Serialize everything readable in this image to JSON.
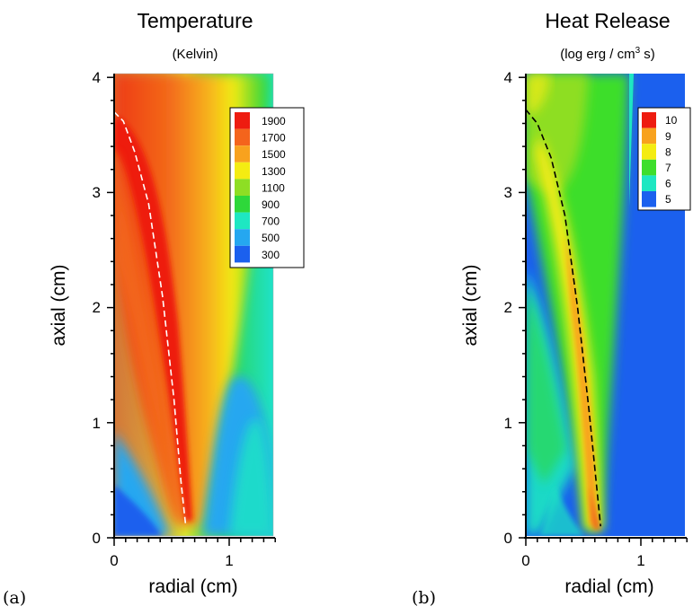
{
  "chart_data": [
    {
      "type": "heatmap",
      "panel_label": "(a)",
      "title": "Temperature",
      "subtitle": "(Kelvin)",
      "xlabel": "radial (cm)",
      "ylabel": "axial (cm)",
      "xlim": [
        0,
        1.4
      ],
      "ylim": [
        0,
        4
      ],
      "x_ticks": [
        "0",
        "1"
      ],
      "y_ticks": [
        "0",
        "1",
        "2",
        "3",
        "4"
      ],
      "legend": {
        "position": "top-right",
        "levels": [
          "1900",
          "1700",
          "1500",
          "1300",
          "1100",
          "900",
          "700",
          "500",
          "300"
        ],
        "colors": [
          "#ee1c10",
          "#f4641c",
          "#f8a21e",
          "#f4ec12",
          "#8ede24",
          "#2ed83a",
          "#1ee7c2",
          "#25a7f0",
          "#1b60ee"
        ]
      },
      "flame_sheet": {
        "color": "#ffffff",
        "style": "dashed",
        "x": [
          0.0,
          0.08,
          0.18,
          0.3,
          0.42,
          0.52,
          0.58,
          0.62
        ],
        "y": [
          3.7,
          3.62,
          3.35,
          2.9,
          2.1,
          1.2,
          0.5,
          0.12
        ]
      }
    },
    {
      "type": "heatmap",
      "panel_label": "(b)",
      "title": "Heat Release",
      "subtitle_parts": [
        "(log erg / cm",
        "3",
        " s)"
      ],
      "xlabel": "radial (cm)",
      "ylabel": "axial (cm)",
      "xlim": [
        0,
        1.4
      ],
      "ylim": [
        0,
        4
      ],
      "x_ticks": [
        "0",
        "1"
      ],
      "y_ticks": [
        "0",
        "1",
        "2",
        "3",
        "4"
      ],
      "legend": {
        "position": "top-right",
        "levels": [
          "10",
          "9",
          "8",
          "7",
          "6",
          "5"
        ],
        "colors": [
          "#ee1c10",
          "#f8a21e",
          "#f4ec12",
          "#3ede2c",
          "#1ee7c2",
          "#1b60ee"
        ]
      },
      "flame_sheet": {
        "color": "#000000",
        "style": "dashed",
        "x": [
          0.0,
          0.1,
          0.22,
          0.34,
          0.45,
          0.55,
          0.61,
          0.65
        ],
        "y": [
          3.72,
          3.6,
          3.3,
          2.8,
          2.0,
          1.1,
          0.5,
          0.1
        ]
      }
    }
  ]
}
